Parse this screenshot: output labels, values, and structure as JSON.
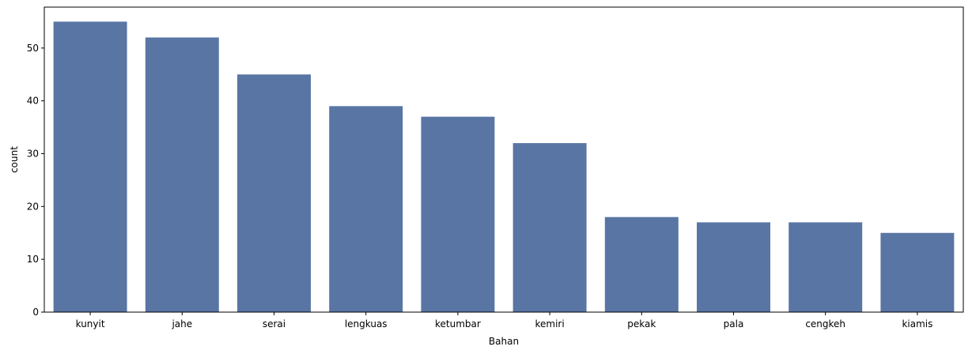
{
  "chart_data": {
    "type": "bar",
    "categories": [
      "kunyit",
      "jahe",
      "serai",
      "lengkuas",
      "ketumbar",
      "kemiri",
      "pekak",
      "pala",
      "cengkeh",
      "kiamis"
    ],
    "values": [
      55,
      52,
      45,
      39,
      37,
      32,
      18,
      17,
      17,
      15
    ],
    "xlabel": "Bahan",
    "ylabel": "count",
    "ylim": [
      0,
      57.75
    ],
    "yticks": [
      0,
      10,
      20,
      30,
      40,
      50
    ],
    "grid": false,
    "bar_color": "#5975a4"
  }
}
